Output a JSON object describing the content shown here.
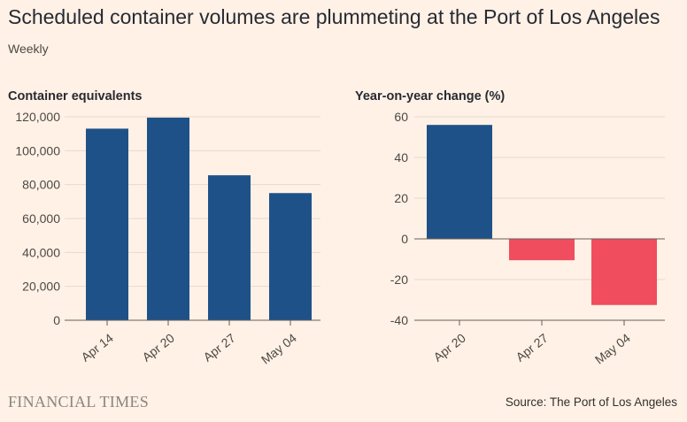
{
  "title": "Scheduled container volumes are plummeting at the Port of Los Angeles",
  "subtitle": "Weekly",
  "footer": {
    "brand": "FINANCIAL TIMES",
    "source": "Source: The Port of Los Angeles"
  },
  "colors": {
    "background": "#fff1e5",
    "positive": "#1f5189",
    "negative": "#f04d5e",
    "axis": "#66605c"
  },
  "chart_data": [
    {
      "type": "bar",
      "title": "Container equivalents",
      "categories": [
        "Apr 14",
        "Apr 20",
        "Apr 27",
        "May 04"
      ],
      "values": [
        113000,
        119500,
        85500,
        75000
      ],
      "ylim": [
        0,
        120000
      ],
      "yticks": [
        0,
        20000,
        40000,
        60000,
        80000,
        100000,
        120000
      ],
      "ytick_labels": [
        "0",
        "20,000",
        "40,000",
        "60,000",
        "80,000",
        "100,000",
        "120,000"
      ],
      "xlabel": "",
      "ylabel": ""
    },
    {
      "type": "bar",
      "title": "Year-on-year change (%)",
      "categories": [
        "Apr 20",
        "Apr 27",
        "May 04"
      ],
      "values": [
        56,
        -10.5,
        -32.5
      ],
      "ylim": [
        -40,
        60
      ],
      "yticks": [
        -40,
        -20,
        0,
        20,
        40,
        60
      ],
      "ytick_labels": [
        "-40",
        "-20",
        "0",
        "20",
        "40",
        "60"
      ],
      "xlabel": "",
      "ylabel": ""
    }
  ]
}
